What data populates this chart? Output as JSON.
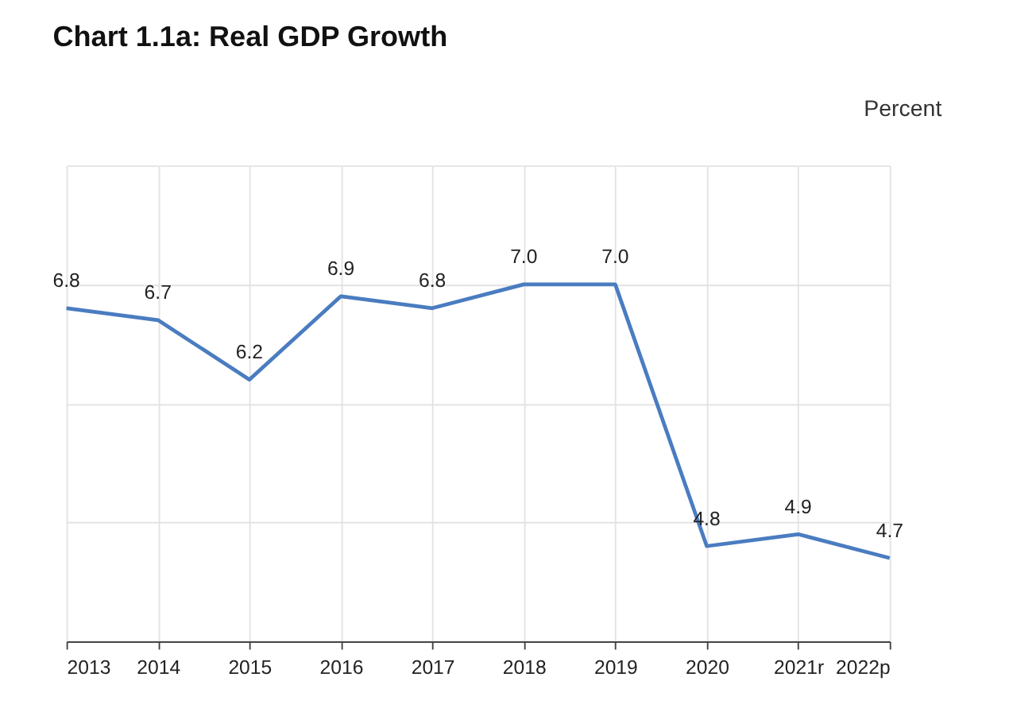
{
  "chart_data": {
    "type": "line",
    "title": "Chart 1.1a: Real GDP Growth",
    "ylabel": "Percent",
    "categories": [
      "2013",
      "2014",
      "2015",
      "2016",
      "2017",
      "2018",
      "2019",
      "2020",
      "2021r",
      "2022p"
    ],
    "series": [
      {
        "color": "#4a7cc0",
        "values": [
          6.8,
          6.7,
          6.2,
          6.9,
          6.8,
          7.0,
          7.0,
          4.8,
          4.9,
          4.7
        ],
        "value_labels": [
          "6.8",
          "6.7",
          "6.2",
          "6.9",
          "6.8",
          "7.0",
          "7.0",
          "4.8",
          "4.9",
          "4.7"
        ]
      }
    ],
    "ylim": [
      4,
      8
    ],
    "yticks": [
      {
        "value": 4,
        "label": null
      },
      {
        "value": 5,
        "label": null
      },
      {
        "value": 6,
        "label": null
      },
      {
        "value": 7,
        "label": null
      },
      {
        "value": 8,
        "label": null
      }
    ],
    "tick_labels": "x",
    "grid": true,
    "marker": "none",
    "line_style": "solid"
  }
}
